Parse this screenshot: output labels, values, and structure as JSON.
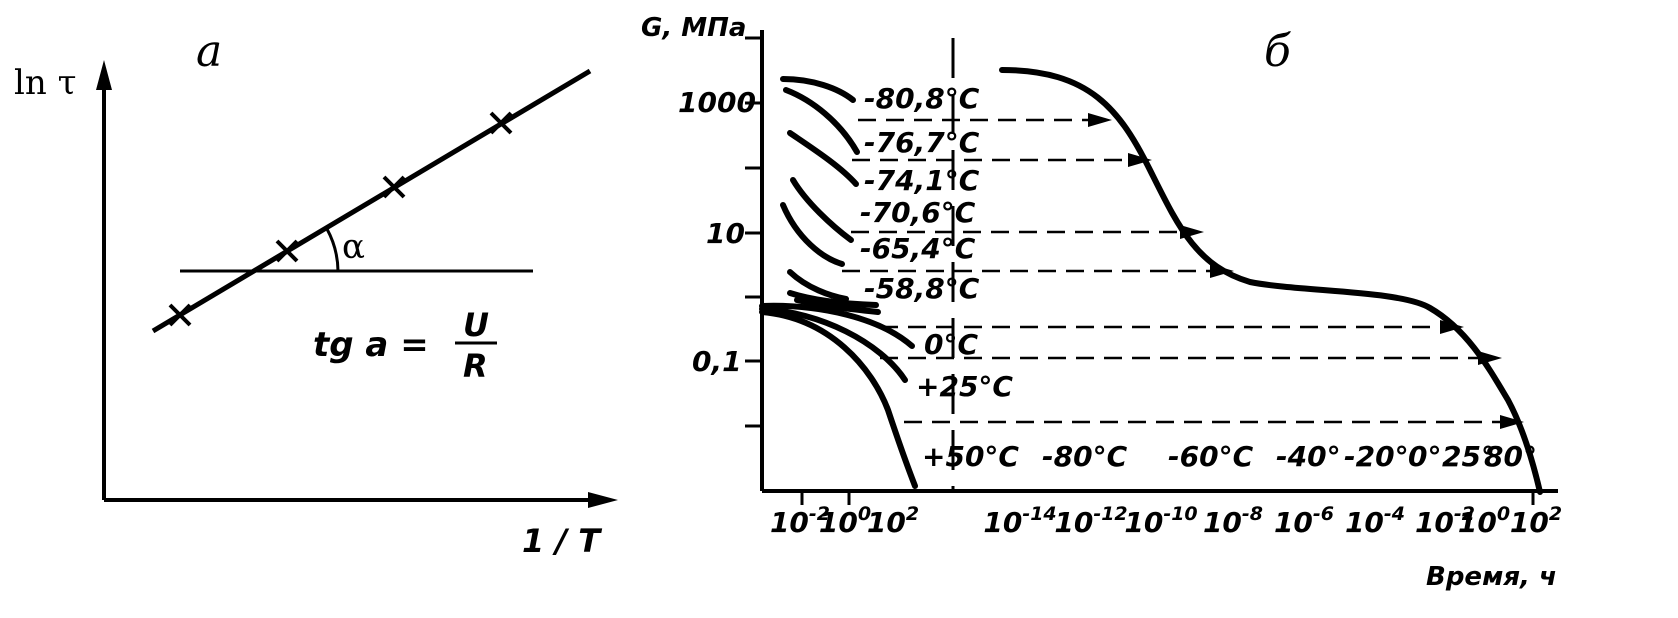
{
  "chart_data": [
    {
      "type": "line",
      "panel_label": "а",
      "ylabel": "ln τ",
      "xlabel": "1 / T",
      "angle_label": "α",
      "formula": {
        "lhs": "tg a =",
        "numerator": "U",
        "denominator": "R"
      },
      "x": [
        1,
        2,
        3,
        4
      ],
      "series": [
        {
          "values": [
            1,
            2,
            3,
            4
          ]
        }
      ],
      "grid": false
    },
    {
      "type": "line",
      "panel_label": "б",
      "ylabel": "G, МПа",
      "xlabel": "Время, ч",
      "y_scale": "log",
      "y_ticks": [
        "1000",
        "10",
        "0,1"
      ],
      "x_scale": "log",
      "x_ticks_left": [
        "10-2",
        "100",
        "102"
      ],
      "x_ticks_master": [
        "10-14",
        "10-12",
        "10-10",
        "10-8",
        "10-6",
        "10-4",
        "10-2",
        "100",
        "102"
      ],
      "temperature_labels": [
        "-80,8°C",
        "-76,7°C",
        "-74,1°C",
        "-70,6°C",
        "-65,4°C",
        "-58,8°C",
        "0°C",
        "+25°C",
        "+50°C"
      ],
      "master_temperature_labels": [
        "-80°C",
        "-60°C",
        "-40°",
        "-20°",
        "0°",
        "25°",
        "80°"
      ],
      "grid": false
    }
  ]
}
